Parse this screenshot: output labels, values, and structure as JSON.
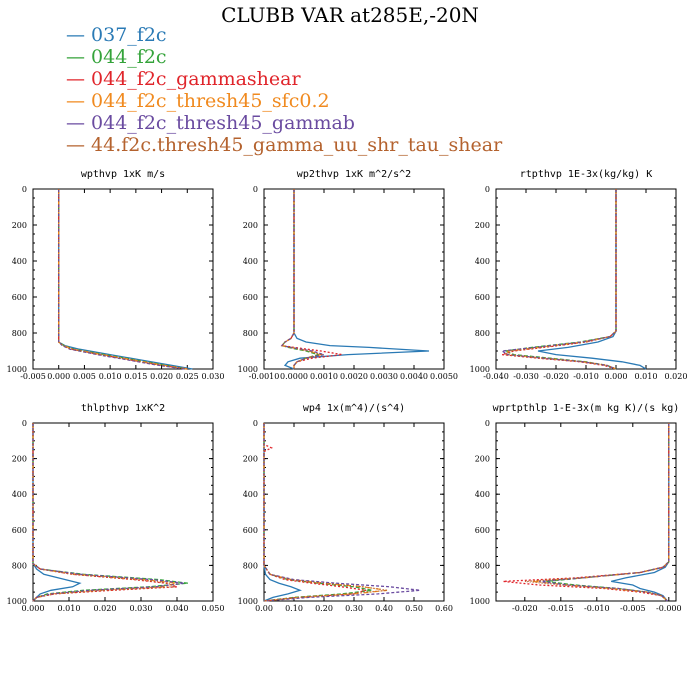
{
  "figure": {
    "title": "CLUBB VAR at285E,-20N"
  },
  "legend": [
    {
      "label": "037_f2c",
      "color": "#2a7ab5"
    },
    {
      "label": "044_f2c",
      "color": "#34a33a"
    },
    {
      "label": "044_f2c_gammashear",
      "color": "#e0252b"
    },
    {
      "label": "044_f2c_thresh45_sfc0.2",
      "color": "#f08a1f"
    },
    {
      "label": "044_f2c_thresh45_gammab",
      "color": "#6a4ba0"
    },
    {
      "label": "44.f2c.thresh45_gamma_uu_shr_tau_shear",
      "color": "#b4622e"
    }
  ],
  "chart_data": [
    {
      "type": "line",
      "title": "wpthvp  1xK m/s",
      "xlim": [
        -0.005,
        0.03
      ],
      "ylim": [
        0,
        1000
      ],
      "y_inverted": true,
      "xticks": [
        "-0.005",
        "0.000",
        "0.005",
        "0.010",
        "0.015",
        "0.020",
        "0.025",
        "0.030"
      ],
      "yticks": [
        "0",
        "200",
        "400",
        "600",
        "800",
        "1000"
      ],
      "y": [
        0,
        250,
        500,
        800,
        850,
        870,
        890,
        920,
        950,
        980,
        1000
      ],
      "series": [
        {
          "color": "#2a7ab5",
          "x": [
            0.0,
            0.0,
            0.0,
            0.0,
            0.0,
            0.0012,
            0.004,
            0.01,
            0.016,
            0.022,
            0.026
          ]
        },
        {
          "color": "#34a33a",
          "x": [
            0.0,
            0.0,
            0.0,
            0.0,
            0.0,
            0.001,
            0.003,
            0.009,
            0.015,
            0.021,
            0.025
          ]
        },
        {
          "color": "#e0252b",
          "x": [
            0.0,
            0.0,
            0.0,
            0.0,
            0.0,
            0.0008,
            0.0025,
            0.008,
            0.014,
            0.02,
            0.025
          ]
        },
        {
          "color": "#f08a1f",
          "x": [
            0.0,
            0.0,
            0.0,
            0.0,
            0.0,
            0.0009,
            0.0028,
            0.0085,
            0.0145,
            0.0205,
            0.025
          ]
        },
        {
          "color": "#6a4ba0",
          "x": [
            0.0,
            0.0,
            0.0,
            0.0,
            0.0,
            0.0007,
            0.0022,
            0.0075,
            0.0135,
            0.0195,
            0.0245
          ]
        },
        {
          "color": "#b4622e",
          "x": [
            0.0,
            0.0,
            0.0,
            0.0,
            0.0,
            0.0008,
            0.0024,
            0.008,
            0.014,
            0.02,
            0.025
          ]
        }
      ]
    },
    {
      "type": "line",
      "title": "wp2thvp  1xK m^2/s^2",
      "xlim": [
        -0.001,
        0.005
      ],
      "ylim": [
        0,
        1000
      ],
      "y_inverted": true,
      "xticks": [
        "-0.0010",
        "0.0000",
        "0.0010",
        "0.0020",
        "0.0030",
        "0.0040",
        "0.0050"
      ],
      "yticks": [
        "0",
        "200",
        "400",
        "600",
        "800",
        "1000"
      ],
      "y": [
        0,
        500,
        800,
        830,
        850,
        870,
        880,
        900,
        920,
        940,
        960,
        980,
        1000
      ],
      "series": [
        {
          "color": "#2a7ab5",
          "x": [
            0.0,
            0.0,
            0.0,
            0.0001,
            0.0004,
            0.0012,
            0.0025,
            0.0045,
            0.0018,
            0.0002,
            -0.0002,
            -0.0003,
            0.0
          ]
        },
        {
          "color": "#34a33a",
          "x": [
            0.0,
            0.0,
            0.0,
            -0.0001,
            -0.0003,
            -0.0004,
            -0.0002,
            0.0004,
            0.0008,
            0.0004,
            0.0001,
            0.0,
            0.0
          ]
        },
        {
          "color": "#e0252b",
          "x": [
            0.0,
            0.0,
            0.0,
            -0.0001,
            -0.0003,
            -0.0004,
            0.0,
            0.0009,
            0.0016,
            0.0006,
            0.0001,
            0.0,
            0.0
          ]
        },
        {
          "color": "#f08a1f",
          "x": [
            0.0,
            0.0,
            0.0,
            -0.0001,
            -0.0003,
            -0.0004,
            -0.0001,
            0.0005,
            0.0009,
            0.0004,
            0.0001,
            0.0,
            0.0
          ]
        },
        {
          "color": "#6a4ba0",
          "x": [
            0.0,
            0.0,
            0.0,
            -0.0001,
            -0.0003,
            -0.0004,
            -0.0001,
            0.0006,
            0.001,
            0.0004,
            0.0001,
            0.0,
            0.0
          ]
        },
        {
          "color": "#b4622e",
          "x": [
            0.0,
            0.0,
            0.0,
            -0.0001,
            -0.0003,
            -0.0004,
            -0.0001,
            0.0005,
            0.0009,
            0.0004,
            0.0001,
            0.0,
            0.0
          ]
        }
      ]
    },
    {
      "type": "line",
      "title": "rtpthvp  1E-3x(kg/kg) K",
      "xlim": [
        -0.04,
        0.02
      ],
      "ylim": [
        0,
        1000
      ],
      "y_inverted": true,
      "xticks": [
        "-0.040",
        "-0.030",
        "-0.020",
        "-0.010",
        "0.000",
        "0.010",
        "0.020"
      ],
      "yticks": [
        "0",
        "200",
        "400",
        "600",
        "800",
        "1000"
      ],
      "y": [
        0,
        500,
        790,
        820,
        850,
        880,
        900,
        920,
        940,
        960,
        980,
        1000
      ],
      "series": [
        {
          "color": "#2a7ab5",
          "x": [
            0.0,
            0.0,
            0.0,
            -0.001,
            -0.006,
            -0.016,
            -0.026,
            -0.02,
            -0.008,
            0.002,
            0.008,
            0.01
          ]
        },
        {
          "color": "#34a33a",
          "x": [
            0.0,
            0.0,
            0.0,
            -0.002,
            -0.012,
            -0.028,
            -0.037,
            -0.034,
            -0.022,
            -0.01,
            -0.003,
            0.0
          ]
        },
        {
          "color": "#e0252b",
          "x": [
            0.0,
            0.0,
            0.0,
            -0.002,
            -0.01,
            -0.024,
            -0.034,
            -0.038,
            -0.026,
            -0.012,
            -0.004,
            0.0
          ]
        },
        {
          "color": "#f08a1f",
          "x": [
            0.0,
            0.0,
            0.0,
            -0.002,
            -0.011,
            -0.026,
            -0.036,
            -0.036,
            -0.024,
            -0.011,
            -0.003,
            0.0
          ]
        },
        {
          "color": "#6a4ba0",
          "x": [
            0.0,
            0.0,
            0.0,
            -0.002,
            -0.011,
            -0.027,
            -0.038,
            -0.036,
            -0.024,
            -0.011,
            -0.003,
            0.0
          ]
        },
        {
          "color": "#b4622e",
          "x": [
            0.0,
            0.0,
            0.0,
            -0.002,
            -0.01,
            -0.025,
            -0.035,
            -0.037,
            -0.025,
            -0.011,
            -0.003,
            0.0
          ]
        }
      ]
    },
    {
      "type": "line",
      "title": "thlpthvp  1xK^2",
      "xlim": [
        0.0,
        0.05
      ],
      "ylim": [
        0,
        1000
      ],
      "y_inverted": true,
      "xticks": [
        "0.000",
        "0.010",
        "0.020",
        "0.030",
        "0.040",
        "0.050"
      ],
      "yticks": [
        "0",
        "200",
        "400",
        "600",
        "800",
        "1000"
      ],
      "y": [
        0,
        500,
        790,
        820,
        850,
        880,
        900,
        920,
        940,
        960,
        980,
        1000
      ],
      "series": [
        {
          "color": "#2a7ab5",
          "x": [
            0.0,
            0.0,
            0.0,
            0.001,
            0.003,
            0.009,
            0.013,
            0.011,
            0.005,
            0.002,
            0.001,
            0.0
          ]
        },
        {
          "color": "#34a33a",
          "x": [
            0.0,
            0.0,
            0.0,
            0.002,
            0.014,
            0.035,
            0.043,
            0.032,
            0.014,
            0.004,
            0.001,
            0.0
          ]
        },
        {
          "color": "#e0252b",
          "x": [
            0.0,
            0.0,
            0.0,
            0.002,
            0.011,
            0.028,
            0.037,
            0.04,
            0.022,
            0.006,
            0.001,
            0.0
          ]
        },
        {
          "color": "#f08a1f",
          "x": [
            0.0,
            0.0,
            0.0,
            0.002,
            0.012,
            0.031,
            0.04,
            0.036,
            0.018,
            0.005,
            0.001,
            0.0
          ]
        },
        {
          "color": "#6a4ba0",
          "x": [
            0.0,
            0.0,
            0.0,
            0.002,
            0.013,
            0.033,
            0.042,
            0.034,
            0.016,
            0.005,
            0.001,
            0.0
          ]
        },
        {
          "color": "#b4622e",
          "x": [
            0.0,
            0.0,
            0.0,
            0.002,
            0.011,
            0.029,
            0.038,
            0.039,
            0.02,
            0.006,
            0.001,
            0.0
          ]
        }
      ]
    },
    {
      "type": "line",
      "title": "wp4  1x(m^4)/(s^4)",
      "xlim": [
        0.0,
        0.6
      ],
      "ylim": [
        0,
        1000
      ],
      "y_inverted": true,
      "xticks": [
        "0.00",
        "0.10",
        "0.20",
        "0.30",
        "0.40",
        "0.50",
        "0.60"
      ],
      "yticks": [
        "0",
        "200",
        "400",
        "600",
        "800",
        "1000"
      ],
      "y": [
        0,
        120,
        140,
        160,
        500,
        800,
        850,
        880,
        900,
        920,
        940,
        960,
        980,
        1000
      ],
      "series": [
        {
          "color": "#2a7ab5",
          "x": [
            0.0,
            0.0,
            0.0,
            0.0,
            0.0,
            0.0,
            0.005,
            0.02,
            0.05,
            0.09,
            0.12,
            0.08,
            0.03,
            0.0
          ]
        },
        {
          "color": "#34a33a",
          "x": [
            0.0,
            0.0,
            0.0,
            0.0,
            0.0,
            0.0,
            0.02,
            0.08,
            0.18,
            0.3,
            0.36,
            0.26,
            0.1,
            0.0
          ]
        },
        {
          "color": "#e0252b",
          "x": [
            0.0,
            0.0,
            0.025,
            0.0,
            0.0,
            0.0,
            0.02,
            0.07,
            0.16,
            0.26,
            0.34,
            0.3,
            0.12,
            0.0
          ]
        },
        {
          "color": "#f08a1f",
          "x": [
            0.0,
            0.0,
            0.0,
            0.0,
            0.0,
            0.0,
            0.02,
            0.09,
            0.2,
            0.33,
            0.41,
            0.3,
            0.12,
            0.0
          ]
        },
        {
          "color": "#6a4ba0",
          "x": [
            0.0,
            0.0,
            0.0,
            0.0,
            0.0,
            0.0,
            0.02,
            0.1,
            0.24,
            0.42,
            0.52,
            0.38,
            0.15,
            0.0
          ]
        },
        {
          "color": "#b4622e",
          "x": [
            0.0,
            0.0,
            0.0,
            0.0,
            0.0,
            0.0,
            0.02,
            0.09,
            0.2,
            0.33,
            0.41,
            0.28,
            0.11,
            0.0
          ]
        }
      ]
    },
    {
      "type": "line",
      "title": "wprtpthlp  1-E-3x(m kg K)/(s kg)",
      "xlim": [
        -0.024,
        0.001
      ],
      "ylim": [
        0,
        1000
      ],
      "y_inverted": true,
      "xticks": [
        "-0.020",
        "-0.015",
        "-0.010",
        "-0.005",
        "-0.000"
      ],
      "yticks": [
        "0",
        "200",
        "400",
        "600",
        "800",
        "1000"
      ],
      "y": [
        0,
        500,
        780,
        810,
        840,
        870,
        890,
        910,
        930,
        950,
        970,
        1000
      ],
      "series": [
        {
          "color": "#2a7ab5",
          "x": [
            0.0,
            0.0,
            0.0,
            -0.0005,
            -0.002,
            -0.006,
            -0.008,
            -0.005,
            -0.004,
            -0.002,
            -0.0008,
            -0.0002
          ]
        },
        {
          "color": "#34a33a",
          "x": [
            0.0,
            0.0,
            0.0,
            -0.0008,
            -0.004,
            -0.012,
            -0.017,
            -0.013,
            -0.007,
            -0.003,
            -0.001,
            -0.0002
          ]
        },
        {
          "color": "#e0252b",
          "x": [
            0.0,
            0.0,
            0.0,
            -0.0007,
            -0.004,
            -0.013,
            -0.023,
            -0.018,
            -0.009,
            -0.004,
            -0.001,
            -0.0002
          ]
        },
        {
          "color": "#f08a1f",
          "x": [
            0.0,
            0.0,
            0.0,
            -0.0008,
            -0.004,
            -0.012,
            -0.019,
            -0.014,
            -0.008,
            -0.003,
            -0.001,
            -0.0002
          ]
        },
        {
          "color": "#6a4ba0",
          "x": [
            0.0,
            0.0,
            0.0,
            -0.0008,
            -0.004,
            -0.012,
            -0.018,
            -0.014,
            -0.007,
            -0.003,
            -0.001,
            -0.0002
          ]
        },
        {
          "color": "#b4622e",
          "x": [
            0.0,
            0.0,
            0.0,
            -0.0007,
            -0.004,
            -0.012,
            -0.02,
            -0.015,
            -0.008,
            -0.003,
            -0.001,
            -0.0002
          ]
        }
      ]
    }
  ]
}
